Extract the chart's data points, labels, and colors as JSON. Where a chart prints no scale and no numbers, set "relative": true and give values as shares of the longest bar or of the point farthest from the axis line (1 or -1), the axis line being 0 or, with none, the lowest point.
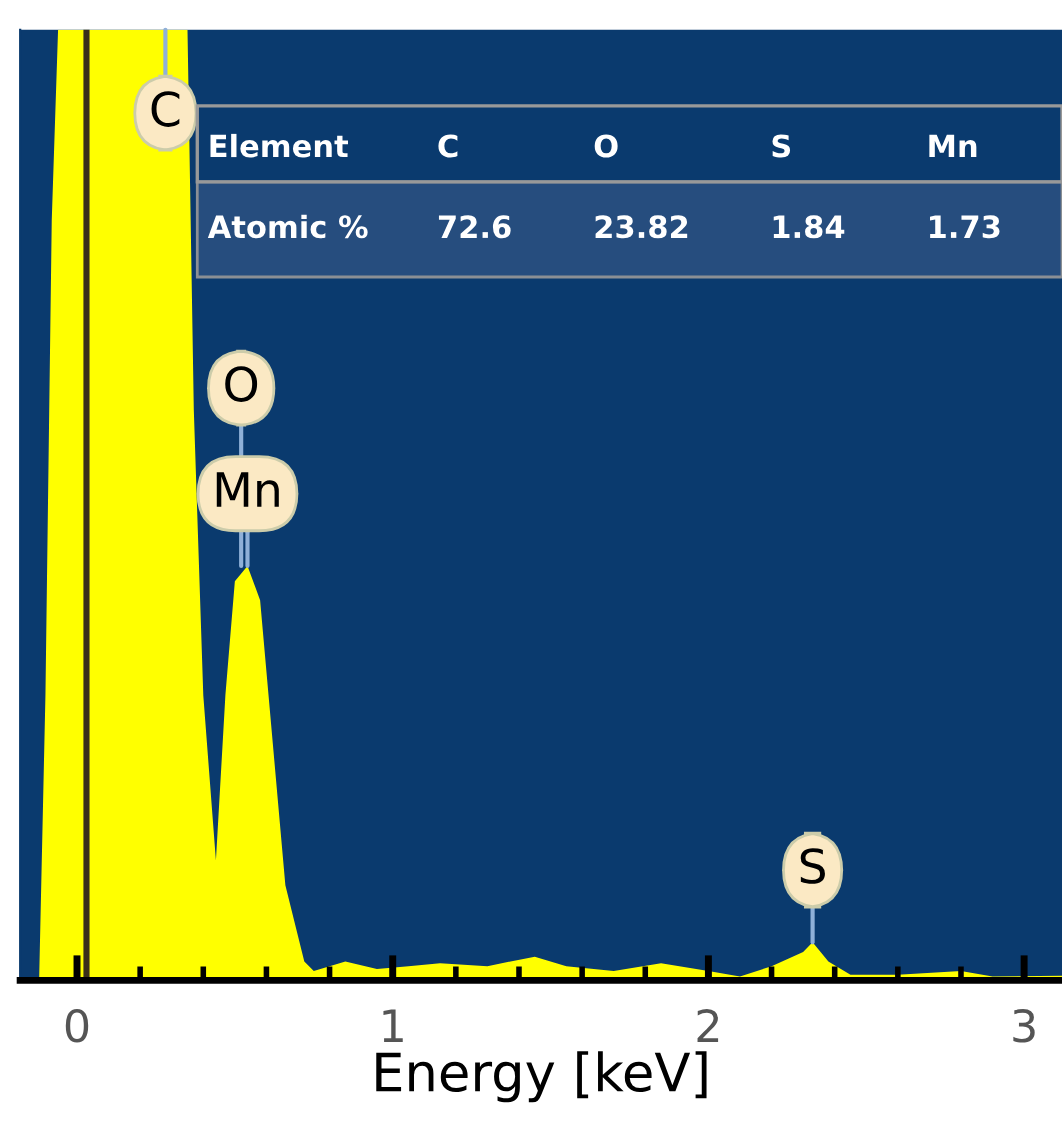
{
  "chart_data": {
    "type": "area",
    "xlabel": "Energy [keV]",
    "relative": true,
    "x": [
      -0.18,
      -0.12,
      -0.1,
      -0.08,
      -0.06,
      0.35,
      0.37,
      0.4,
      0.44,
      0.47,
      0.5,
      0.54,
      0.58,
      0.62,
      0.66,
      0.72,
      0.75,
      0.85,
      0.95,
      1.05,
      1.15,
      1.3,
      1.45,
      1.55,
      1.7,
      1.85,
      2.0,
      2.1,
      2.2,
      2.3,
      2.33,
      2.38,
      2.45,
      2.6,
      2.8,
      2.9,
      3.12
    ],
    "series": [
      {
        "color": "#ffff00",
        "values": [
          0,
          0,
          0.3,
          0.8,
          1,
          1,
          0.6,
          0.3,
          0.126,
          0.3,
          0.42,
          0.436,
          0.4,
          0.25,
          0.1,
          0.02,
          0.01,
          0.02,
          0.012,
          0.015,
          0.018,
          0.015,
          0.025,
          0.015,
          0.01,
          0.018,
          0.01,
          0.004,
          0.015,
          0.03,
          0.04,
          0.02,
          0.006,
          0.006,
          0.01,
          0.004,
          0.005
        ]
      }
    ],
    "xlim": [
      -0.18,
      3.12
    ],
    "xticks": [
      0,
      1,
      2,
      3
    ],
    "ref_lines": [
      {
        "axis": "x",
        "value": 0.03,
        "color": "#3a2f1a"
      }
    ],
    "annotations": [
      {
        "text": "C",
        "x": 0.28,
        "y": 1
      },
      {
        "text": "O",
        "x": 0.52,
        "y": 0.436
      },
      {
        "text": "Mn",
        "x": 0.54,
        "y": 0.436
      },
      {
        "text": "S",
        "x": 2.33,
        "y": 0.04
      },
      "Element",
      "C",
      "O",
      "S",
      "Mn",
      "Atomic %",
      "72.6",
      "23.82",
      "1.84",
      "1.73"
    ]
  }
}
